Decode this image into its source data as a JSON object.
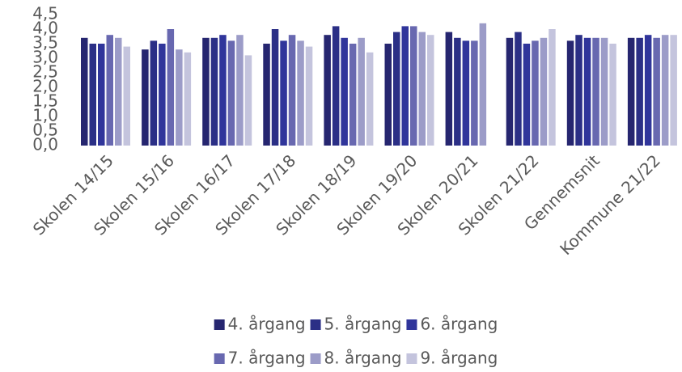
{
  "chart_data": {
    "type": "bar",
    "categories": [
      "Skolen 14/15",
      "Skolen 15/16",
      "Skolen 16/17",
      "Skolen 17/18",
      "Skolen 18/19",
      "Skolen 19/20",
      "Skolen 20/21",
      "Skolen 21/22",
      "Gennemsnit",
      "Kommune 21/22"
    ],
    "series": [
      {
        "name": "4. årgang",
        "color": "#262670",
        "values": [
          3.7,
          3.3,
          3.7,
          3.5,
          3.8,
          3.5,
          3.9,
          3.7,
          3.6,
          3.7
        ]
      },
      {
        "name": "5. årgang",
        "color": "#2b2f86",
        "values": [
          3.5,
          3.6,
          3.7,
          4.0,
          4.1,
          3.9,
          3.7,
          3.9,
          3.8,
          3.7
        ]
      },
      {
        "name": "6. årgang",
        "color": "#30359b",
        "values": [
          3.5,
          3.5,
          3.8,
          3.6,
          3.7,
          4.1,
          3.6,
          3.5,
          3.7,
          3.8
        ]
      },
      {
        "name": "7. årgang",
        "color": "#6868b0",
        "values": [
          3.8,
          4.0,
          3.6,
          3.8,
          3.5,
          4.1,
          3.6,
          3.6,
          3.7,
          3.7
        ]
      },
      {
        "name": "8. årgang",
        "color": "#9c9cc8",
        "values": [
          3.7,
          3.3,
          3.8,
          3.6,
          3.7,
          3.9,
          4.2,
          3.7,
          3.7,
          3.8
        ]
      },
      {
        "name": "9. årgang",
        "color": "#c4c4dd",
        "values": [
          3.4,
          3.2,
          3.1,
          3.4,
          3.2,
          3.8,
          null,
          4.0,
          3.5,
          3.8
        ]
      }
    ],
    "ylim": [
      0,
      4.5
    ],
    "yticks": [
      {
        "value": 0,
        "label": "0,0"
      },
      {
        "value": 0.5,
        "label": "0,5"
      },
      {
        "value": 1,
        "label": "1,0"
      },
      {
        "value": 1.5,
        "label": "1,5"
      },
      {
        "value": 2,
        "label": "2,0"
      },
      {
        "value": 2.5,
        "label": "2,5"
      },
      {
        "value": 3,
        "label": "3,0"
      },
      {
        "value": 3.5,
        "label": "3,5"
      },
      {
        "value": 4,
        "label": "4,0"
      },
      {
        "value": 4.5,
        "label": "4,5"
      }
    ],
    "grid": false
  }
}
